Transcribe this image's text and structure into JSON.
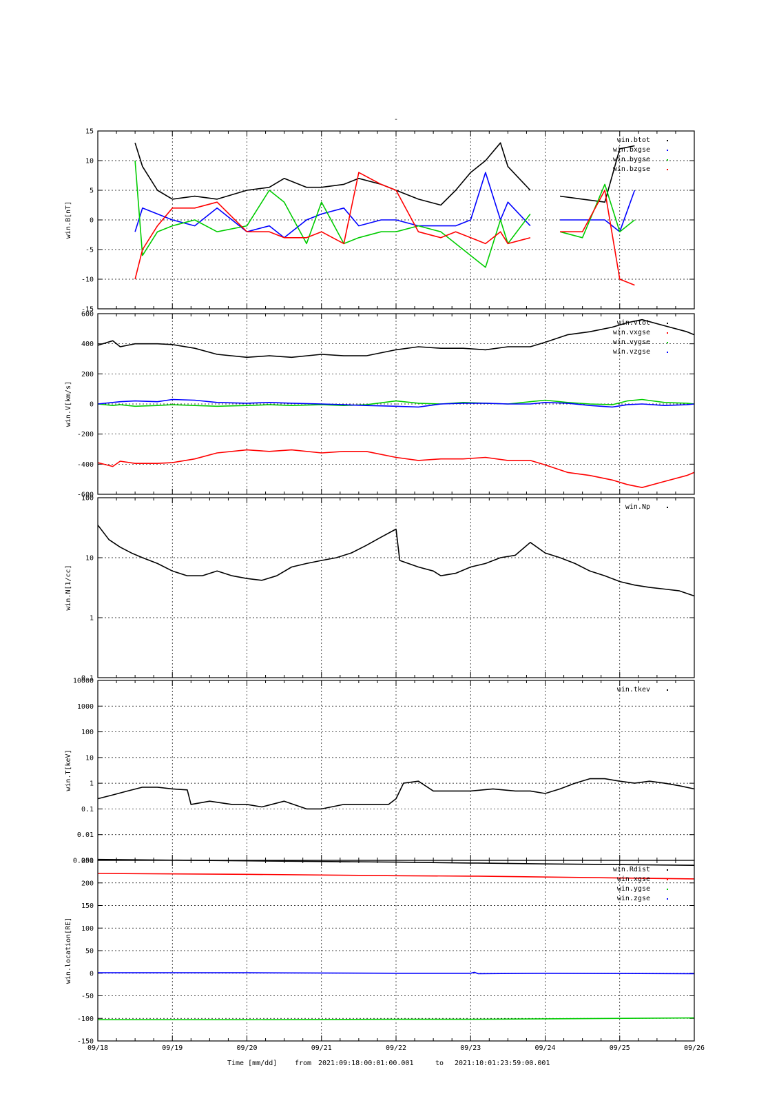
{
  "page_title": "-",
  "footer": {
    "time_axis_label": "Time [mm/dd]",
    "range_from_label": "from",
    "range_from": "2021:09:18:00:01:00.001",
    "range_to_label": "to",
    "range_to": "2021:10:01:23:59:00.001"
  },
  "x_tick_labels": [
    "09/18",
    "09/19",
    "09/20",
    "09/21",
    "09/22",
    "09/23",
    "09/24",
    "09/25",
    "09/26"
  ],
  "chart_data": [
    {
      "type": "line",
      "ylabel": "win.B[nT]",
      "ylim": [
        -15,
        15
      ],
      "ytick_values": [
        -15,
        -10,
        -5,
        0,
        5,
        10,
        15
      ],
      "ytick_labels": [
        "-15",
        "-10",
        "-5",
        "0",
        "5",
        "10",
        "15"
      ],
      "yscale": "linear",
      "grid": true,
      "legend_position": "top-right",
      "x": [
        0.5,
        0.6,
        0.8,
        1.0,
        1.3,
        1.6,
        2.0,
        2.3,
        2.5,
        2.8,
        3.0,
        3.3,
        3.5,
        3.8,
        4.0,
        4.3,
        4.6,
        4.8,
        5.0,
        5.2,
        5.4,
        5.5,
        5.8,
        6.0,
        6.2,
        6.5,
        6.8,
        7.0,
        7.2,
        7.4,
        7.6,
        7.8,
        8.0
      ],
      "series": [
        {
          "name": "win.btot",
          "color": "#000000",
          "values": [
            13,
            9,
            5,
            3.5,
            4,
            3.5,
            5,
            5.5,
            7,
            5.5,
            5.5,
            6,
            7,
            6,
            5,
            3.5,
            2.5,
            5,
            8,
            10,
            13,
            9,
            5,
            null,
            4,
            3.5,
            3,
            12,
            12.5,
            null,
            null,
            null,
            null
          ]
        },
        {
          "name": "win.bxgse",
          "color": "#0000ff",
          "values": [
            -2,
            2,
            1,
            0,
            -1,
            2,
            -2,
            -1,
            -3,
            0,
            1,
            2,
            -1,
            0,
            0,
            -1,
            -1,
            -1,
            0,
            8,
            0,
            3,
            -1,
            null,
            0,
            0,
            0,
            -2,
            5,
            null,
            null,
            null,
            null
          ]
        },
        {
          "name": "win.bygse",
          "color": "#00cc00",
          "values": [
            10,
            -6,
            -2,
            -1,
            0,
            -2,
            -1,
            5,
            3,
            -4,
            3,
            -4,
            -3,
            -2,
            -2,
            -1,
            -2,
            -4,
            -6,
            -8,
            0,
            -4,
            1,
            null,
            -2,
            -3,
            6,
            -2,
            0,
            null,
            null,
            null,
            null
          ]
        },
        {
          "name": "win.bzgse",
          "color": "#ff0000",
          "values": [
            -10,
            -5,
            -1,
            2,
            2,
            3,
            -2,
            -2,
            -3,
            -3,
            -2,
            -4,
            8,
            6,
            5,
            -2,
            -3,
            -2,
            -3,
            -4,
            -2,
            -4,
            -3,
            null,
            -2,
            -2,
            5,
            -10,
            -11,
            null,
            null,
            null,
            null
          ]
        }
      ]
    },
    {
      "type": "line",
      "ylabel": "win.V[km/s]",
      "ylim": [
        -600,
        600
      ],
      "ytick_values": [
        -600,
        -400,
        -200,
        0,
        200,
        400,
        600
      ],
      "ytick_labels": [
        "-600",
        "-400",
        "-200",
        "0",
        "200",
        "400",
        "600"
      ],
      "yscale": "linear",
      "grid": true,
      "legend_position": "top-right",
      "x": [
        0,
        0.2,
        0.3,
        0.5,
        0.8,
        1.0,
        1.3,
        1.6,
        2.0,
        2.3,
        2.6,
        3.0,
        3.3,
        3.6,
        4.0,
        4.3,
        4.6,
        4.9,
        5.2,
        5.5,
        5.8,
        6.0,
        6.3,
        6.6,
        6.9,
        7.1,
        7.3,
        7.6,
        7.9,
        8.0
      ],
      "series": [
        {
          "name": "win.vtot",
          "color": "#000000",
          "values": [
            390,
            420,
            380,
            400,
            400,
            395,
            370,
            330,
            310,
            320,
            310,
            330,
            320,
            320,
            360,
            380,
            370,
            370,
            360,
            380,
            380,
            410,
            460,
            480,
            510,
            540,
            560,
            520,
            480,
            460
          ]
        },
        {
          "name": "win.vxgse",
          "color": "#ff0000",
          "values": [
            -390,
            -415,
            -380,
            -395,
            -395,
            -390,
            -365,
            -325,
            -305,
            -315,
            -305,
            -325,
            -315,
            -315,
            -355,
            -375,
            -365,
            -365,
            -355,
            -375,
            -375,
            -405,
            -455,
            -475,
            -505,
            -535,
            -555,
            -515,
            -475,
            -455
          ]
        },
        {
          "name": "win.vygse",
          "color": "#00cc00",
          "values": [
            0,
            -10,
            -5,
            -15,
            -10,
            -5,
            -10,
            -15,
            -10,
            -5,
            -10,
            -5,
            -10,
            -5,
            20,
            5,
            0,
            10,
            5,
            0,
            15,
            25,
            10,
            0,
            -5,
            20,
            30,
            10,
            5,
            0
          ]
        },
        {
          "name": "win.vzgse",
          "color": "#0000ff",
          "values": [
            0,
            10,
            15,
            20,
            15,
            30,
            25,
            10,
            5,
            10,
            5,
            0,
            -5,
            -10,
            -15,
            -20,
            0,
            5,
            5,
            0,
            0,
            10,
            5,
            -10,
            -20,
            -5,
            0,
            -10,
            -5,
            0
          ]
        }
      ]
    },
    {
      "type": "line",
      "ylabel": "win.N[1/cc]",
      "ylim": [
        0.1,
        100
      ],
      "ytick_values": [
        0.1,
        1,
        10,
        100
      ],
      "ytick_labels": [
        "0.1",
        "1",
        "10",
        "100"
      ],
      "yscale": "log",
      "grid": true,
      "legend_position": "top-right",
      "x": [
        0,
        0.15,
        0.3,
        0.45,
        0.6,
        0.8,
        1.0,
        1.2,
        1.4,
        1.6,
        1.8,
        2.0,
        2.2,
        2.4,
        2.6,
        2.8,
        3.0,
        3.2,
        3.4,
        3.6,
        3.8,
        4.0,
        4.05,
        4.3,
        4.5,
        4.6,
        4.8,
        5.0,
        5.2,
        5.4,
        5.6,
        5.8,
        6.0,
        6.2,
        6.4,
        6.6,
        6.8,
        7.0,
        7.2,
        7.4,
        7.6,
        7.8,
        8.0
      ],
      "series": [
        {
          "name": "win.Np",
          "color": "#000000",
          "values": [
            35,
            20,
            15,
            12,
            10,
            8,
            6,
            5,
            5,
            6,
            5,
            4.5,
            4.2,
            5,
            7,
            8,
            9,
            10,
            12,
            16,
            22,
            30,
            9,
            7,
            6,
            5,
            5.5,
            7,
            8,
            10,
            11,
            18,
            12,
            10,
            8,
            6,
            5,
            4,
            3.5,
            3.2,
            3,
            2.8,
            2.3
          ]
        }
      ]
    },
    {
      "type": "line",
      "ylabel": "win.T[keV]",
      "ylim": [
        0.001,
        10000
      ],
      "ytick_values": [
        0.001,
        0.01,
        0.1,
        1,
        10,
        100,
        1000,
        10000
      ],
      "ytick_labels": [
        "0.001",
        "0.01",
        "0.1",
        "1",
        "10",
        "100",
        "1000",
        "10000"
      ],
      "yscale": "log",
      "grid": true,
      "legend_position": "top-right",
      "x": [
        0,
        0.2,
        0.4,
        0.6,
        0.8,
        1.0,
        1.2,
        1.25,
        1.5,
        1.8,
        2.0,
        2.2,
        2.5,
        2.8,
        3.0,
        3.3,
        3.6,
        3.9,
        4.0,
        4.1,
        4.3,
        4.5,
        4.8,
        5.0,
        5.3,
        5.6,
        5.8,
        6.0,
        6.2,
        6.4,
        6.6,
        6.8,
        7.0,
        7.2,
        7.4,
        7.6,
        7.8,
        8.0
      ],
      "series": [
        {
          "name": "win.tkev",
          "color": "#000000",
          "values": [
            0.25,
            0.35,
            0.5,
            0.7,
            0.7,
            0.6,
            0.55,
            0.15,
            0.2,
            0.15,
            0.15,
            0.12,
            0.2,
            0.1,
            0.1,
            0.15,
            0.15,
            0.15,
            0.25,
            1.0,
            1.2,
            0.5,
            0.5,
            0.5,
            0.6,
            0.5,
            0.5,
            0.4,
            0.6,
            1.0,
            1.5,
            1.5,
            1.2,
            1.0,
            1.2,
            1.0,
            0.8,
            0.6
          ]
        }
      ]
    },
    {
      "type": "line",
      "ylabel": "win.location[RE]",
      "ylim": [
        -150,
        250
      ],
      "ytick_values": [
        -150,
        -100,
        -50,
        0,
        50,
        100,
        150,
        200,
        250
      ],
      "ytick_labels": [
        "-150",
        "-100",
        "-50",
        "0",
        "50",
        "100",
        "150",
        "200",
        "250"
      ],
      "yscale": "linear",
      "grid": true,
      "legend_position": "top-right",
      "x": [
        0,
        2,
        4,
        5,
        5.05,
        5.1,
        6,
        8
      ],
      "series": [
        {
          "name": "win.Rdist",
          "color": "#000000",
          "values": [
            252,
            249,
            246,
            244,
            244,
            244,
            242,
            239
          ]
        },
        {
          "name": "win.xgse",
          "color": "#ff0000",
          "values": [
            221,
            219,
            216,
            215,
            215,
            215,
            213,
            209
          ]
        },
        {
          "name": "win.ygse",
          "color": "#00cc00",
          "values": [
            -103,
            -103,
            -102,
            -102,
            -102,
            -102,
            -101,
            -99
          ]
        },
        {
          "name": "win.zgse",
          "color": "#0000ff",
          "values": [
            1,
            1,
            0,
            0,
            2,
            -1,
            0,
            -1
          ]
        }
      ]
    }
  ]
}
